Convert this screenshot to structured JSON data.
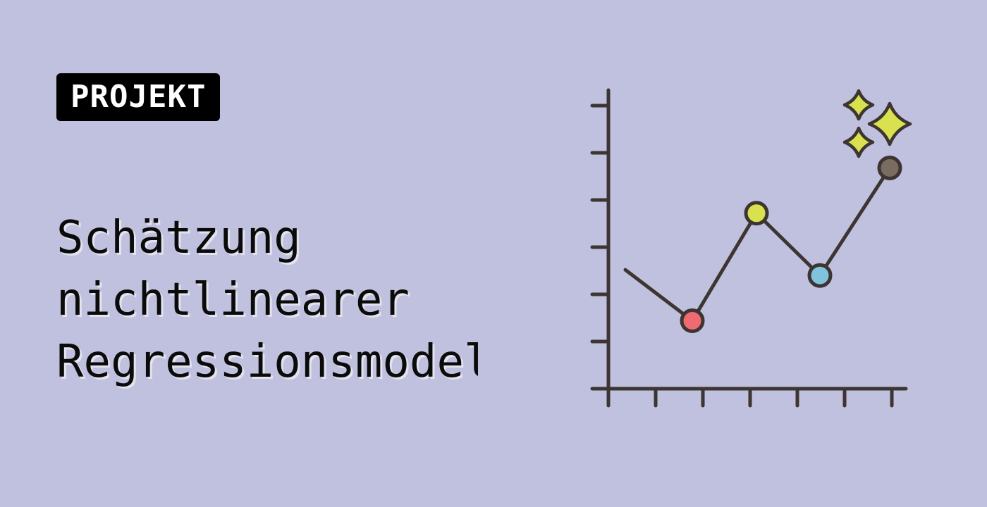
{
  "colors": {
    "background": "#c0c1de",
    "badge_bg": "#000000",
    "badge_text": "#ffffff",
    "title_text": "#0b0b0b",
    "axis": "#3d3532",
    "line": "#3d3532",
    "sparkle": "#d9e24e",
    "point_colors": [
      "#ee6b73",
      "#d9e24e",
      "#7fc3dc",
      "#7b6c62"
    ]
  },
  "badge": {
    "label": "PROJEKT"
  },
  "title": {
    "lines": [
      "Schätzung",
      "nichtlinearer",
      "Regressionsmodel"
    ]
  },
  "illustration": {
    "icon": "line-chart-with-sparkles-icon",
    "y_tick_count": 7,
    "x_tick_count": 7,
    "series": [
      0.42,
      0.24,
      0.62,
      0.4,
      0.78
    ]
  }
}
